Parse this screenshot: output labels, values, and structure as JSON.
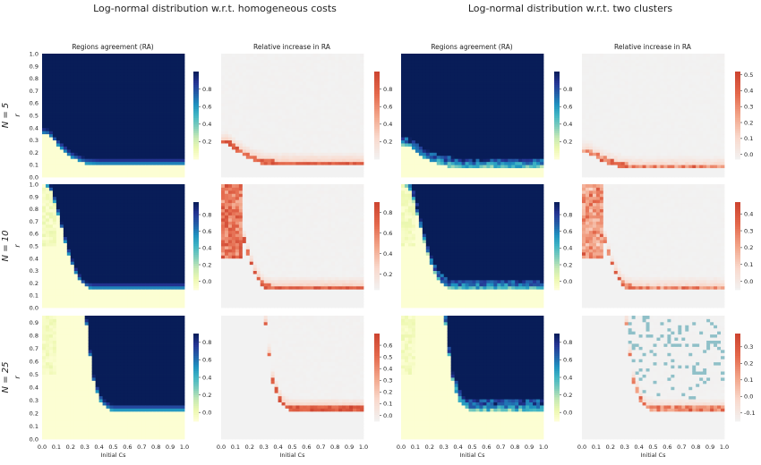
{
  "headers": {
    "left": "Log-normal distribution w.r.t. homogeneous costs",
    "right": "Log-normal distribution w.r.t. two clusters"
  },
  "column_titles": [
    "Regions agreement (RA)",
    "Relative increase in RA"
  ],
  "row_labels": [
    "N = 5",
    "N = 10",
    "N = 25"
  ],
  "y_axis_label": "r",
  "x_axis_label": "Initial Cs",
  "colors": {
    "ra_map": [
      "#ffffd9",
      "#edf8b1",
      "#c7e9b4",
      "#7fcdbb",
      "#41b6c4",
      "#1d91c0",
      "#225ea8",
      "#253494",
      "#081d58"
    ],
    "rel_map": [
      "#f2f2f2",
      "#f9d9cc",
      "#f2a488",
      "#e4684b",
      "#cc4430"
    ],
    "rel_negative": "#8fc0c8"
  },
  "chart_data": [
    {
      "type": "heatmap",
      "title": "Regions agreement (RA)",
      "row": "N = 5",
      "group": "homogeneous",
      "xlim": [
        0,
        1
      ],
      "ylim": [
        0,
        1
      ],
      "xticks": [
        "0.0",
        "0.1",
        "0.2",
        "0.3",
        "0.4",
        "0.5",
        "0.6",
        "0.7",
        "0.8",
        "0.9",
        "1.0"
      ],
      "yticks": [
        "0.0",
        "0.1",
        "0.2",
        "0.3",
        "0.4",
        "0.5",
        "0.6",
        "0.7",
        "0.8",
        "0.9",
        "1.0"
      ],
      "boundary": {
        "cs": [
          0,
          0.05,
          0.1,
          0.2,
          0.3,
          0.4,
          1.0
        ],
        "r": [
          0.35,
          0.34,
          0.27,
          0.16,
          0.11,
          0.1,
          0.1
        ]
      },
      "colorbar": {
        "ticks": [
          "0.2",
          "0.4",
          "0.6",
          "0.8"
        ],
        "range": [
          0,
          1
        ]
      }
    },
    {
      "type": "heatmap",
      "title": "Relative increase in RA",
      "row": "N = 5",
      "group": "homogeneous",
      "xlim": [
        0,
        1
      ],
      "ylim": [
        0,
        1
      ],
      "boundary": {
        "cs": [
          0,
          0.05,
          0.1,
          0.2,
          0.3,
          0.4,
          1.0
        ],
        "r": [
          0.27,
          0.27,
          0.22,
          0.15,
          0.11,
          0.1,
          0.1
        ]
      },
      "peak": 0.95,
      "colorbar": {
        "ticks": [
          "0.2",
          "0.4",
          "0.6",
          "0.8"
        ],
        "range": [
          0,
          1
        ]
      }
    },
    {
      "type": "heatmap",
      "title": "Regions agreement (RA)",
      "row": "N = 5",
      "group": "two clusters",
      "xlim": [
        0,
        1
      ],
      "ylim": [
        0,
        1
      ],
      "boundary": {
        "cs": [
          0,
          0.05,
          0.1,
          0.2,
          0.3,
          0.4,
          1.0
        ],
        "r": [
          0.25,
          0.25,
          0.2,
          0.13,
          0.09,
          0.08,
          0.08
        ]
      },
      "colorbar": {
        "ticks": [
          "0.2",
          "0.4",
          "0.6",
          "0.8"
        ],
        "range": [
          0,
          1
        ]
      }
    },
    {
      "type": "heatmap",
      "title": "Relative increase in RA",
      "row": "N = 5",
      "group": "two clusters",
      "xlim": [
        0,
        1
      ],
      "ylim": [
        0,
        1
      ],
      "boundary": {
        "cs": [
          0,
          0.05,
          0.1,
          0.2,
          0.3,
          0.4,
          1.0
        ],
        "r": [
          0.2,
          0.2,
          0.16,
          0.11,
          0.08,
          0.07,
          0.07
        ]
      },
      "peak": 0.5,
      "colorbar": {
        "ticks": [
          "0.0",
          "0.1",
          "0.2",
          "0.3",
          "0.4",
          "0.5"
        ],
        "range": [
          -0.03,
          0.52
        ]
      }
    },
    {
      "type": "heatmap",
      "title": "Regions agreement (RA)",
      "row": "N = 10",
      "group": "homogeneous",
      "xlim": [
        0,
        1
      ],
      "ylim": [
        0,
        1
      ],
      "yticks": [
        "0.0",
        "0.1",
        "0.2",
        "0.3",
        "0.4",
        "0.5",
        "0.6",
        "0.7",
        "0.8",
        "0.9",
        "1.0"
      ],
      "boundary": {
        "cs": [
          0,
          0.05,
          0.1,
          0.15,
          0.2,
          0.25,
          0.3,
          0.35,
          1.0
        ],
        "r": [
          1.0,
          0.98,
          0.82,
          0.58,
          0.38,
          0.24,
          0.17,
          0.15,
          0.15
        ]
      },
      "colorbar": {
        "ticks": [
          "0.0",
          "0.2",
          "0.4",
          "0.6",
          "0.8"
        ],
        "range": [
          -0.1,
          0.95
        ]
      }
    },
    {
      "type": "heatmap",
      "title": "Relative increase in RA",
      "row": "N = 10",
      "group": "homogeneous",
      "xlim": [
        0,
        1
      ],
      "ylim": [
        0,
        1
      ],
      "boundary": {
        "cs": [
          0,
          0.05,
          0.1,
          0.15,
          0.2,
          0.25,
          0.3,
          0.35,
          1.0
        ],
        "r": [
          1.0,
          0.98,
          0.82,
          0.58,
          0.38,
          0.24,
          0.17,
          0.15,
          0.15
        ]
      },
      "peak": 0.85,
      "colorbar": {
        "ticks": [
          "0.2",
          "0.4",
          "0.6",
          "0.8"
        ],
        "range": [
          0.05,
          0.9
        ]
      }
    },
    {
      "type": "heatmap",
      "title": "Regions agreement (RA)",
      "row": "N = 10",
      "group": "two clusters",
      "xlim": [
        0,
        1
      ],
      "ylim": [
        0,
        1
      ],
      "boundary": {
        "cs": [
          0,
          0.05,
          0.1,
          0.15,
          0.2,
          0.25,
          0.3,
          0.35,
          1.0
        ],
        "r": [
          1.0,
          0.98,
          0.82,
          0.58,
          0.38,
          0.24,
          0.17,
          0.15,
          0.15
        ]
      },
      "colorbar": {
        "ticks": [
          "0.0",
          "0.2",
          "0.4",
          "0.6",
          "0.8"
        ],
        "range": [
          -0.1,
          0.95
        ]
      }
    },
    {
      "type": "heatmap",
      "title": "Relative increase in RA",
      "row": "N = 10",
      "group": "two clusters",
      "xlim": [
        0,
        1
      ],
      "ylim": [
        0,
        1
      ],
      "boundary": {
        "cs": [
          0,
          0.05,
          0.1,
          0.15,
          0.2,
          0.25,
          0.3,
          0.35,
          1.0
        ],
        "r": [
          1.0,
          0.98,
          0.82,
          0.58,
          0.38,
          0.24,
          0.17,
          0.15,
          0.15
        ]
      },
      "peak": 0.45,
      "colorbar": {
        "ticks": [
          "0.0",
          "0.1",
          "0.2",
          "0.3",
          "0.4"
        ],
        "range": [
          -0.05,
          0.47
        ]
      }
    },
    {
      "type": "heatmap",
      "title": "Regions agreement (RA)",
      "row": "N = 25",
      "group": "homogeneous",
      "xlim": [
        0,
        1
      ],
      "ylim": [
        0,
        0.95
      ],
      "xticks": [
        "0.0",
        "0.1",
        "0.2",
        "0.3",
        "0.4",
        "0.5",
        "0.6",
        "0.7",
        "0.8",
        "0.9",
        "1.0"
      ],
      "yticks": [
        "0.0",
        "0.1",
        "0.2",
        "0.3",
        "0.4",
        "0.5",
        "0.6",
        "0.7",
        "0.8",
        "0.9"
      ],
      "boundary": {
        "cs": [
          0.3,
          0.33,
          0.36,
          0.4,
          0.43,
          0.47,
          0.5,
          1.0
        ],
        "r": [
          1.0,
          0.7,
          0.45,
          0.32,
          0.26,
          0.23,
          0.22,
          0.22
        ]
      },
      "colorbar": {
        "ticks": [
          "0.0",
          "0.2",
          "0.4",
          "0.6",
          "0.8"
        ],
        "range": [
          -0.1,
          0.9
        ]
      }
    },
    {
      "type": "heatmap",
      "title": "Relative increase in RA",
      "row": "N = 25",
      "group": "homogeneous",
      "xlim": [
        0,
        1
      ],
      "ylim": [
        0,
        0.95
      ],
      "boundary": {
        "cs": [
          0.3,
          0.33,
          0.36,
          0.4,
          0.43,
          0.47,
          0.5,
          1.0
        ],
        "r": [
          1.0,
          0.7,
          0.45,
          0.32,
          0.26,
          0.23,
          0.22,
          0.22
        ]
      },
      "peak": 0.7,
      "colorbar": {
        "ticks": [
          "0.0",
          "0.1",
          "0.2",
          "0.3",
          "0.4",
          "0.5",
          "0.6"
        ],
        "range": [
          -0.05,
          0.7
        ]
      }
    },
    {
      "type": "heatmap",
      "title": "Regions agreement (RA)",
      "row": "N = 25",
      "group": "two clusters",
      "xlim": [
        0,
        1
      ],
      "ylim": [
        0,
        0.95
      ],
      "boundary": {
        "cs": [
          0.3,
          0.33,
          0.36,
          0.4,
          0.43,
          0.47,
          0.5,
          1.0
        ],
        "r": [
          1.0,
          0.7,
          0.45,
          0.32,
          0.26,
          0.23,
          0.22,
          0.22
        ]
      },
      "colorbar": {
        "ticks": [
          "0.0",
          "0.2",
          "0.4",
          "0.6",
          "0.8"
        ],
        "range": [
          -0.1,
          0.9
        ]
      }
    },
    {
      "type": "heatmap",
      "title": "Relative increase in RA",
      "row": "N = 25",
      "group": "two clusters",
      "xlim": [
        0,
        1
      ],
      "ylim": [
        0,
        0.95
      ],
      "boundary": {
        "cs": [
          0.3,
          0.33,
          0.36,
          0.4,
          0.43,
          0.47,
          0.5,
          1.0
        ],
        "r": [
          1.0,
          0.7,
          0.45,
          0.32,
          0.26,
          0.23,
          0.22,
          0.22
        ]
      },
      "peak": 0.35,
      "colorbar": {
        "ticks": [
          "-0.1",
          "0.0",
          "0.1",
          "0.2",
          "0.3"
        ],
        "range": [
          -0.15,
          0.38
        ]
      }
    }
  ]
}
